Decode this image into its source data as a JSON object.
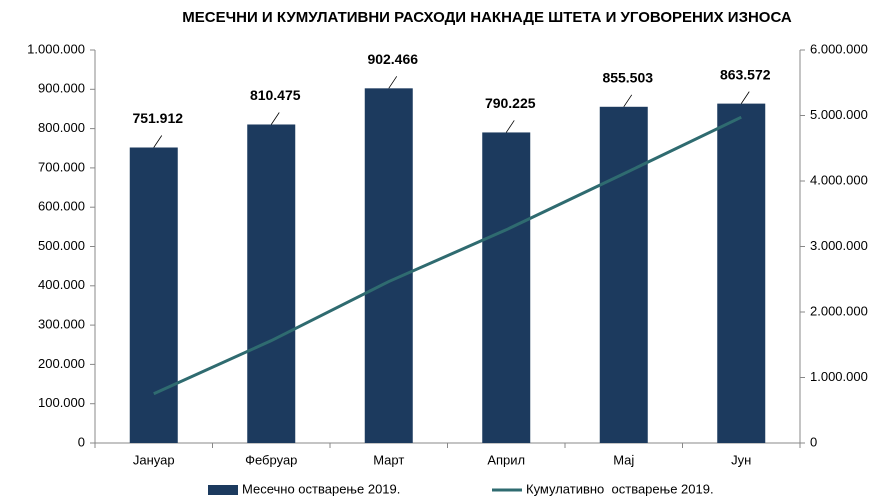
{
  "chart_data": {
    "type": "bar",
    "title": "МЕСЕЧНИ И КУМУЛАТИВНИ РАСХОДИ НАКНАДЕ ШТЕТА И УГОВОРЕНИХ ИЗНОСА",
    "categories": [
      "Јануар",
      "Фебруар",
      "Март",
      "Април",
      "Мај",
      "Јун"
    ],
    "series": [
      {
        "name": "Месечно остварење 2019.",
        "color": "#1c3a5e",
        "values": [
          751912,
          810475,
          902466,
          790225,
          855503,
          863572
        ],
        "value_labels": [
          "751.912",
          "810.475",
          "902.466",
          "790.225",
          "855.503",
          "863.572"
        ]
      },
      {
        "name": "Кумулативно  остварење 2019.",
        "color": "#2f6b70",
        "type": "line",
        "axis": "y2",
        "values": [
          751912,
          1562387,
          2464853,
          3255078,
          4110581,
          4974153
        ]
      }
    ],
    "ylim": [
      0,
      1000000
    ],
    "yticks": [
      0,
      {
        "value": 100000,
        "label": "100.000"
      },
      {
        "value": 200000,
        "label": "200.000"
      },
      {
        "value": 300000,
        "label": "300.000"
      },
      {
        "value": 400000,
        "label": "400.000"
      },
      {
        "value": 500000,
        "label": "500.000"
      },
      {
        "value": 600000,
        "label": "600.000"
      },
      {
        "value": 700000,
        "label": "700.000"
      },
      {
        "value": 800000,
        "label": "800.000"
      },
      {
        "value": 900000,
        "label": "900.000"
      },
      {
        "value": 1000000,
        "label": "1.000.000"
      }
    ],
    "y2lim": [
      0,
      6000000
    ],
    "y2ticks": [
      0,
      {
        "value": 1000000,
        "label": "1.000.000"
      },
      {
        "value": 2000000,
        "label": "2.000.000"
      },
      {
        "value": 3000000,
        "label": "3.000.000"
      },
      {
        "value": 4000000,
        "label": "4.000.000"
      },
      {
        "value": 5000000,
        "label": "5.000.000"
      },
      {
        "value": 6000000,
        "label": "6.000.000"
      }
    ],
    "grid": false
  }
}
